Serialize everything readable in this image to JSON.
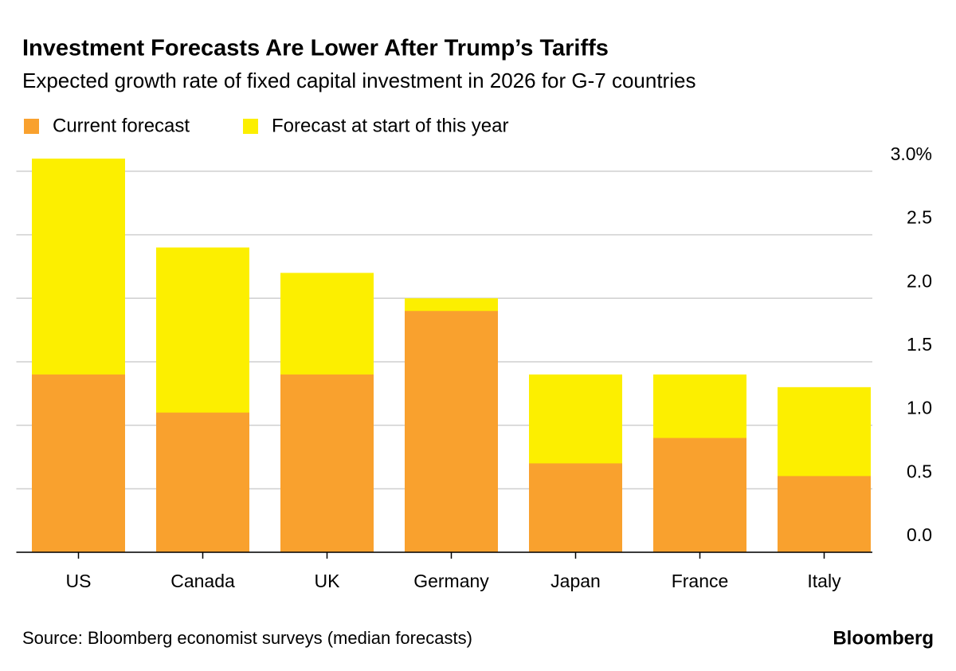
{
  "chart_data": {
    "type": "bar",
    "title": "Investment Forecasts Are Lower After Trump’s Tariffs",
    "subtitle": "Expected growth rate of fixed capital investment in 2026 for G-7 countries",
    "categories": [
      "US",
      "Canada",
      "UK",
      "Germany",
      "Japan",
      "France",
      "Italy"
    ],
    "series": [
      {
        "name": "Current forecast",
        "color": "#f9a12e",
        "values": [
          1.4,
          1.1,
          1.4,
          1.9,
          0.7,
          0.9,
          0.6
        ]
      },
      {
        "name": "Forecast at start of this year",
        "color": "#fcef00",
        "values": [
          3.1,
          2.4,
          2.2,
          2.0,
          1.4,
          1.4,
          1.3
        ]
      }
    ],
    "ylim": [
      0,
      3.1
    ],
    "yticks": [
      {
        "value": 0,
        "label": "0.0"
      },
      0.5,
      {
        "value": 1,
        "label": "1.0"
      },
      1.5,
      {
        "value": 2,
        "label": "2.0"
      },
      2.5,
      {
        "value": 3,
        "label": "3.0%"
      }
    ],
    "grid": true,
    "source": "Source: Bloomberg economist surveys (median forecasts)",
    "brand": "Bloomberg"
  }
}
